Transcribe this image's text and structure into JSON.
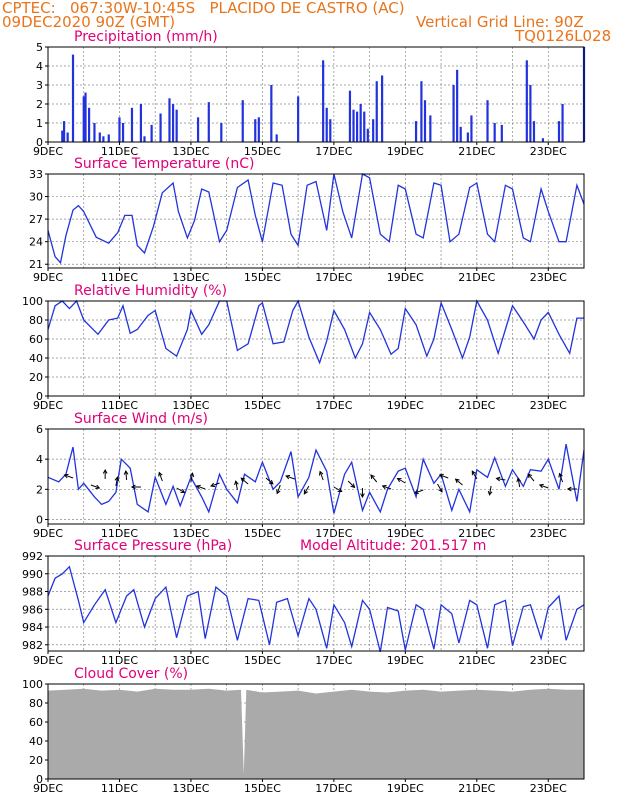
{
  "header": {
    "line1": "CPTEC:   067:30W-10:45S   PLACIDO DE CASTRO (AC)",
    "line2": "09DEC2020 90Z (GMT)",
    "grid_note": "Vertical Grid Line: 90Z",
    "code": "TQ0126L028"
  },
  "model_altitude": "Model Altitude: 201.517 m",
  "x_labels": [
    "9DEC",
    "11DEC",
    "13DEC",
    "15DEC",
    "17DEC",
    "19DEC",
    "21DEC",
    "23DEC"
  ],
  "x_label_start_day": 9,
  "x_range_days": [
    9,
    24
  ],
  "colors": {
    "line": "#2233dd",
    "bar": "#2233dd",
    "cloud": "#aaaaaa",
    "grid": "#888888",
    "title": "#e0007a",
    "header": "#e8741c"
  },
  "chart_data": [
    {
      "type": "bar",
      "title": "Precipitation (mm/h)",
      "ylim": [
        0,
        5
      ],
      "yticks": [
        0,
        1,
        2,
        3,
        4,
        5
      ],
      "x": [
        9.4,
        9.45,
        9.55,
        9.7,
        10.0,
        10.05,
        10.15,
        10.3,
        10.45,
        10.55,
        10.7,
        11.0,
        11.1,
        11.35,
        11.6,
        11.7,
        11.9,
        12.15,
        12.4,
        12.5,
        12.6,
        13.2,
        13.5,
        13.85,
        14.45,
        14.8,
        14.9,
        15.25,
        15.4,
        16.0,
        16.7,
        16.8,
        16.9,
        17.45,
        17.55,
        17.65,
        17.75,
        17.85,
        17.95,
        18.1,
        18.2,
        18.35,
        19.3,
        19.45,
        19.55,
        19.7,
        20.35,
        20.45,
        20.55,
        20.75,
        20.85,
        21.3,
        21.5,
        21.7,
        22.4,
        22.5,
        22.6,
        22.85,
        23.3,
        23.4,
        24.0
      ],
      "values": [
        0.6,
        1.1,
        0.5,
        4.6,
        2.4,
        2.6,
        1.8,
        1.0,
        0.5,
        0.3,
        0.4,
        1.3,
        1.0,
        1.8,
        2.0,
        0.3,
        0.9,
        1.5,
        2.3,
        2.0,
        1.7,
        1.3,
        2.1,
        1.0,
        2.2,
        1.2,
        1.3,
        3.0,
        0.4,
        2.4,
        4.3,
        1.8,
        1.2,
        2.7,
        1.7,
        1.6,
        2.0,
        1.6,
        0.7,
        1.2,
        3.2,
        3.5,
        1.1,
        3.2,
        2.2,
        1.4,
        3.0,
        3.8,
        0.8,
        0.5,
        1.4,
        2.2,
        1.0,
        0.9,
        4.3,
        3.0,
        1.1,
        0.2,
        1.1,
        2.0,
        5.0
      ]
    },
    {
      "type": "line",
      "title": "Surface Temperature (nC)",
      "ylim": [
        20.5,
        33
      ],
      "yticks": [
        21,
        24,
        27,
        30,
        33
      ],
      "x": [
        9.0,
        9.2,
        9.35,
        9.5,
        9.7,
        9.85,
        10.0,
        10.35,
        10.7,
        10.95,
        11.15,
        11.35,
        11.5,
        11.7,
        11.95,
        12.2,
        12.5,
        12.65,
        12.9,
        13.1,
        13.3,
        13.5,
        13.8,
        14.0,
        14.3,
        14.6,
        14.8,
        15.0,
        15.3,
        15.55,
        15.8,
        16.0,
        16.25,
        16.5,
        16.8,
        17.0,
        17.25,
        17.5,
        17.8,
        18.0,
        18.3,
        18.55,
        18.8,
        19.0,
        19.3,
        19.5,
        19.8,
        20.0,
        20.25,
        20.5,
        20.8,
        21.0,
        21.3,
        21.5,
        21.8,
        22.0,
        22.3,
        22.5,
        22.8,
        23.0,
        23.3,
        23.5,
        23.8,
        24.0
      ],
      "values": [
        25.5,
        22.0,
        21.2,
        24.8,
        28.2,
        28.8,
        28.0,
        24.6,
        23.8,
        25.2,
        27.5,
        27.5,
        23.5,
        22.5,
        26.0,
        30.5,
        31.8,
        28.0,
        24.5,
        26.8,
        31.0,
        30.6,
        24.0,
        25.5,
        31.2,
        32.2,
        27.5,
        24.0,
        31.8,
        31.5,
        25.0,
        23.5,
        31.5,
        32.0,
        25.5,
        33.0,
        28.0,
        24.5,
        33.0,
        32.5,
        25.0,
        24.0,
        31.5,
        31.0,
        25.0,
        24.5,
        31.8,
        31.5,
        24.0,
        25.0,
        31.2,
        31.8,
        25.0,
        24.0,
        31.5,
        31.0,
        24.5,
        24.0,
        31.0,
        28.0,
        24.0,
        24.0,
        31.5,
        29.0
      ]
    },
    {
      "type": "line",
      "title": "Relative Humidity (%)",
      "ylim": [
        0,
        100
      ],
      "yticks": [
        0,
        20,
        40,
        60,
        80,
        100
      ],
      "x": [
        9.0,
        9.2,
        9.4,
        9.6,
        9.8,
        10.0,
        10.4,
        10.7,
        10.95,
        11.1,
        11.3,
        11.5,
        11.8,
        12.0,
        12.3,
        12.6,
        12.9,
        13.0,
        13.3,
        13.5,
        13.8,
        14.0,
        14.3,
        14.6,
        14.9,
        15.0,
        15.3,
        15.6,
        15.85,
        16.0,
        16.3,
        16.6,
        16.8,
        17.0,
        17.3,
        17.6,
        17.8,
        18.0,
        18.3,
        18.6,
        18.8,
        19.0,
        19.3,
        19.6,
        19.8,
        20.0,
        20.3,
        20.6,
        20.8,
        21.0,
        21.3,
        21.6,
        21.8,
        22.0,
        22.3,
        22.6,
        22.8,
        23.0,
        23.3,
        23.6,
        23.8,
        24.0
      ],
      "values": [
        70,
        95,
        100,
        92,
        100,
        80,
        65,
        80,
        82,
        95,
        66,
        70,
        85,
        90,
        50,
        42,
        70,
        90,
        65,
        75,
        100,
        100,
        48,
        55,
        95,
        98,
        55,
        57,
        90,
        100,
        62,
        35,
        58,
        90,
        70,
        40,
        55,
        88,
        70,
        44,
        50,
        92,
        75,
        42,
        60,
        98,
        70,
        40,
        62,
        100,
        80,
        45,
        70,
        95,
        78,
        60,
        80,
        88,
        65,
        45,
        82,
        82
      ]
    },
    {
      "type": "line",
      "title": "Surface Wind (m/s)",
      "ylim": [
        -0.3,
        6
      ],
      "yticks": [
        0,
        2,
        4,
        6
      ],
      "x": [
        9.0,
        9.3,
        9.5,
        9.7,
        9.85,
        10.0,
        10.3,
        10.5,
        10.7,
        10.9,
        11.05,
        11.3,
        11.5,
        11.8,
        12.0,
        12.3,
        12.5,
        12.7,
        13.0,
        13.3,
        13.5,
        13.8,
        14.0,
        14.3,
        14.5,
        14.8,
        15.0,
        15.3,
        15.5,
        15.8,
        16.0,
        16.3,
        16.5,
        16.8,
        17.0,
        17.3,
        17.5,
        17.8,
        18.0,
        18.3,
        18.5,
        18.8,
        19.0,
        19.3,
        19.5,
        19.8,
        20.0,
        20.3,
        20.5,
        20.8,
        21.0,
        21.3,
        21.5,
        21.8,
        22.0,
        22.3,
        22.5,
        22.8,
        23.0,
        23.3,
        23.5,
        23.8,
        24.0
      ],
      "values": [
        2.8,
        2.5,
        3.0,
        4.8,
        2.0,
        2.4,
        1.5,
        1.0,
        1.2,
        1.8,
        4.0,
        3.4,
        1.0,
        0.5,
        2.8,
        1.0,
        2.2,
        0.9,
        2.8,
        1.5,
        0.5,
        3.0,
        2.0,
        1.1,
        3.0,
        2.5,
        3.8,
        2.0,
        2.5,
        4.5,
        1.5,
        2.8,
        4.6,
        3.2,
        0.4,
        3.0,
        3.8,
        0.6,
        1.8,
        0.5,
        2.0,
        3.2,
        3.4,
        1.5,
        4.0,
        2.4,
        3.0,
        0.6,
        2.0,
        0.5,
        3.3,
        2.8,
        4.1,
        2.2,
        3.3,
        2.2,
        3.3,
        3.2,
        4.0,
        2.0,
        5.0,
        1.2,
        4.6
      ]
    },
    {
      "type": "line",
      "title": "Surface Pressure (hPa)",
      "ylim": [
        981.3,
        992
      ],
      "yticks": [
        982,
        984,
        986,
        988,
        990,
        992
      ],
      "x": [
        9.0,
        9.2,
        9.4,
        9.6,
        9.85,
        10.0,
        10.3,
        10.6,
        10.9,
        11.2,
        11.4,
        11.7,
        12.0,
        12.3,
        12.6,
        12.9,
        13.2,
        13.4,
        13.7,
        14.0,
        14.3,
        14.6,
        14.9,
        15.2,
        15.4,
        15.7,
        16.0,
        16.3,
        16.5,
        16.8,
        17.0,
        17.3,
        17.5,
        17.8,
        18.0,
        18.3,
        18.5,
        18.8,
        19.0,
        19.3,
        19.5,
        19.8,
        20.0,
        20.3,
        20.5,
        20.8,
        21.0,
        21.3,
        21.5,
        21.8,
        22.0,
        22.3,
        22.5,
        22.8,
        23.0,
        23.3,
        23.5,
        23.8,
        24.0
      ],
      "values": [
        987.5,
        989.5,
        990.0,
        990.8,
        987.0,
        984.5,
        986.5,
        988.2,
        984.5,
        987.5,
        988.2,
        984.0,
        987.2,
        988.5,
        982.8,
        987.5,
        988.0,
        982.7,
        988.5,
        987.5,
        982.5,
        987.2,
        987.0,
        982.0,
        986.8,
        987.2,
        983.0,
        987.2,
        986.0,
        981.6,
        986.5,
        984.5,
        981.8,
        987.0,
        986.0,
        981.2,
        986.2,
        985.8,
        981.4,
        986.5,
        986.0,
        981.5,
        986.5,
        985.5,
        982.2,
        987.0,
        986.5,
        981.6,
        986.5,
        987.0,
        981.9,
        986.3,
        986.5,
        982.7,
        986.2,
        987.5,
        982.5,
        986.0,
        986.5
      ]
    },
    {
      "type": "area",
      "title": "Cloud Cover (%)",
      "ylim": [
        0,
        100
      ],
      "yticks": [
        0,
        20,
        40,
        60,
        80,
        100
      ],
      "x": [
        9.0,
        9.5,
        10.0,
        10.5,
        11.0,
        11.5,
        12.0,
        12.5,
        13.0,
        13.5,
        14.0,
        14.4,
        14.48,
        14.55,
        15.0,
        15.5,
        16.0,
        16.5,
        17.0,
        17.5,
        18.0,
        18.5,
        19.0,
        19.5,
        20.0,
        20.5,
        21.0,
        21.5,
        22.0,
        22.5,
        23.0,
        23.5,
        24.0
      ],
      "values": [
        93,
        94,
        95,
        93,
        94,
        92,
        95,
        94,
        94,
        95,
        93,
        94,
        5,
        94,
        91,
        92,
        93,
        90,
        92,
        94,
        92,
        91,
        93,
        94,
        92,
        93,
        94,
        93,
        92,
        94,
        95,
        94,
        94
      ]
    }
  ]
}
